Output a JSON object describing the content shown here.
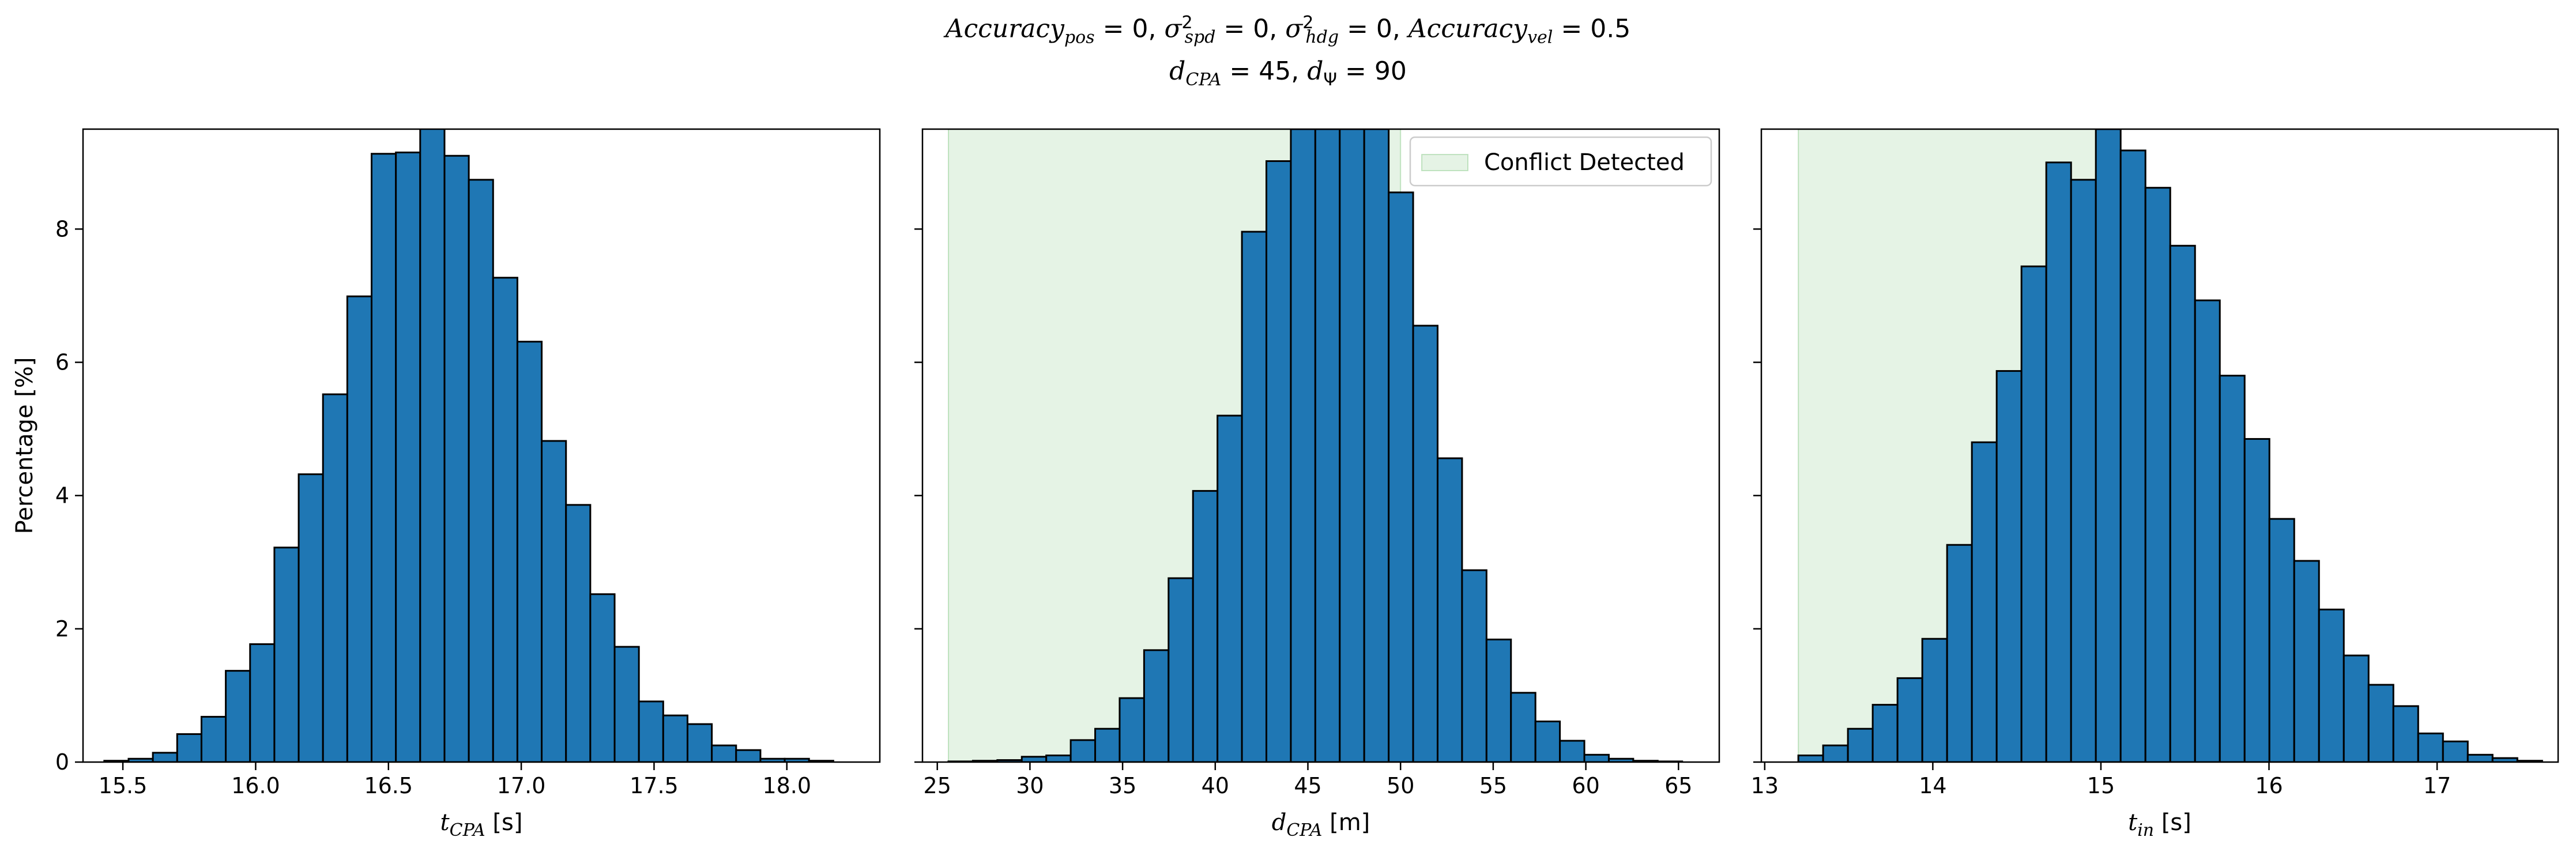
{
  "title": {
    "line1": "Accuracy_pos = 0, σ²_spd = 0, σ²_hdg = 0, Accuracy_vel = 0.5",
    "line2": "d_CPA = 45, d_Ψ = 90"
  },
  "colors": {
    "bar_fill": "#1f77b4",
    "bar_edge": "#000000",
    "conflict_fill": "#2ca02c"
  },
  "chart_data": [
    {
      "type": "bar",
      "name": "t_CPA histogram",
      "xlabel": "t_CPA [s]",
      "ylabel": "Percentage [%]",
      "xlim": [
        15.35,
        18.35
      ],
      "ylim": [
        0,
        9.5
      ],
      "xticks": [
        15.5,
        16.0,
        16.5,
        17.0,
        17.5,
        18.0
      ],
      "xtick_labels": [
        "15.5",
        "16.0",
        "16.5",
        "17.0",
        "17.5",
        "18.0"
      ],
      "yticks": [
        0,
        2,
        4,
        6,
        8
      ],
      "ytick_labels": [
        "0",
        "2",
        "4",
        "6",
        "8"
      ],
      "bin_start": 15.43,
      "bin_width": 0.0915,
      "values": [
        0.02,
        0.05,
        0.14,
        0.42,
        0.68,
        1.37,
        1.77,
        3.22,
        4.32,
        5.52,
        6.99,
        9.13,
        9.15,
        9.52,
        9.1,
        8.74,
        7.27,
        6.31,
        4.82,
        3.86,
        2.52,
        1.73,
        0.91,
        0.7,
        0.57,
        0.25,
        0.18,
        0.05,
        0.05,
        0.02
      ]
    },
    {
      "type": "bar",
      "name": "d_CPA histogram",
      "xlabel": "d_CPA [m]",
      "ylabel": "",
      "xlim": [
        24.2,
        67.2
      ],
      "ylim": [
        0,
        9.5
      ],
      "xticks": [
        25,
        30,
        35,
        40,
        45,
        50,
        55,
        60,
        65
      ],
      "xtick_labels": [
        "25",
        "30",
        "35",
        "40",
        "45",
        "50",
        "55",
        "60",
        "65"
      ],
      "yticks": [
        0,
        2,
        4,
        6,
        8
      ],
      "ytick_labels": [
        "",
        "",
        "",
        "",
        ""
      ],
      "bin_start": 25.6,
      "bin_width": 1.32,
      "values": [
        0.01,
        0.02,
        0.03,
        0.08,
        0.1,
        0.33,
        0.5,
        0.96,
        1.68,
        2.76,
        4.07,
        5.2,
        7.96,
        9.02,
        9.5,
        9.5,
        9.5,
        9.5,
        8.55,
        6.55,
        4.56,
        2.88,
        1.84,
        1.04,
        0.61,
        0.32,
        0.11,
        0.05,
        0.02,
        0.01
      ],
      "shaded_region": {
        "label": "Conflict Detected",
        "x_range": [
          25.6,
          50.0
        ]
      },
      "legend": {
        "placement": "top-right",
        "entries": [
          "Conflict Detected"
        ]
      }
    },
    {
      "type": "bar",
      "name": "t_in histogram",
      "xlabel": "t_in [s]",
      "ylabel": "",
      "xlim": [
        12.98,
        17.72
      ],
      "ylim": [
        0,
        9.5
      ],
      "xticks": [
        13,
        14,
        15,
        16,
        17
      ],
      "xtick_labels": [
        "13",
        "14",
        "15",
        "16",
        "17"
      ],
      "yticks": [
        0,
        2,
        4,
        6,
        8
      ],
      "ytick_labels": [
        "",
        "",
        "",
        "",
        ""
      ],
      "bin_start": 13.2,
      "bin_width": 0.1475,
      "values": [
        0.1,
        0.25,
        0.5,
        0.86,
        1.26,
        1.85,
        3.26,
        4.8,
        5.87,
        7.44,
        9.0,
        8.74,
        9.5,
        9.18,
        8.62,
        7.75,
        6.93,
        5.8,
        4.85,
        3.65,
        3.02,
        2.29,
        1.6,
        1.16,
        0.84,
        0.43,
        0.31,
        0.11,
        0.06,
        0.02
      ],
      "shaded_region": {
        "label": "Conflict Detected",
        "x_range": [
          13.2,
          15.0
        ]
      }
    }
  ]
}
